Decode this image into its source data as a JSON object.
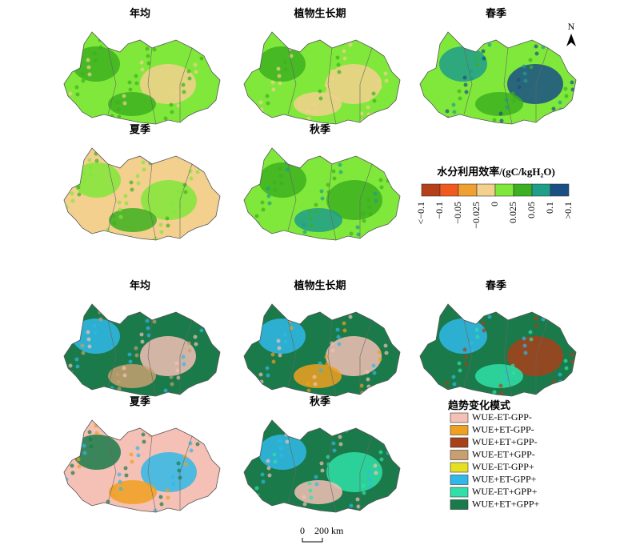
{
  "north": "N",
  "wue_maps": {
    "panels": [
      "年均",
      "植物生长期",
      "春季",
      "夏季",
      "秋季"
    ],
    "legend": {
      "title": "水分利用效率/(gC/kgH₂O)",
      "labels": [
        "<−0.1",
        "−0.1",
        "−0.05",
        "−0.025",
        "0",
        "0.025",
        "0.05",
        "0.1",
        ">0.1"
      ],
      "colors": [
        "#b5401a",
        "#f05a1e",
        "#f0a030",
        "#f3d08e",
        "#80e83a",
        "#3cb020",
        "#1f9e8a",
        "#1a4f86"
      ]
    }
  },
  "trend_maps": {
    "panels": [
      "年均",
      "植物生长期",
      "春季",
      "夏季",
      "秋季"
    ],
    "legend": {
      "title": "趋势变化模式",
      "labels": [
        "WUE-ET-GPP-",
        "WUE+ET-GPP-",
        "WUE+ET+GPP-",
        "WUE-ET+GPP-",
        "WUE-ET-GPP+",
        "WUE+ET-GPP+",
        "WUE-ET+GPP+",
        "WUE+ET+GPP+"
      ],
      "colors": [
        "#f5c0b5",
        "#f0a020",
        "#a8401a",
        "#c8a070",
        "#e6e020",
        "#30b8e8",
        "#30e0a8",
        "#1a7a4a"
      ]
    }
  },
  "scale_bar": {
    "start": "0",
    "end": "200 km"
  }
}
